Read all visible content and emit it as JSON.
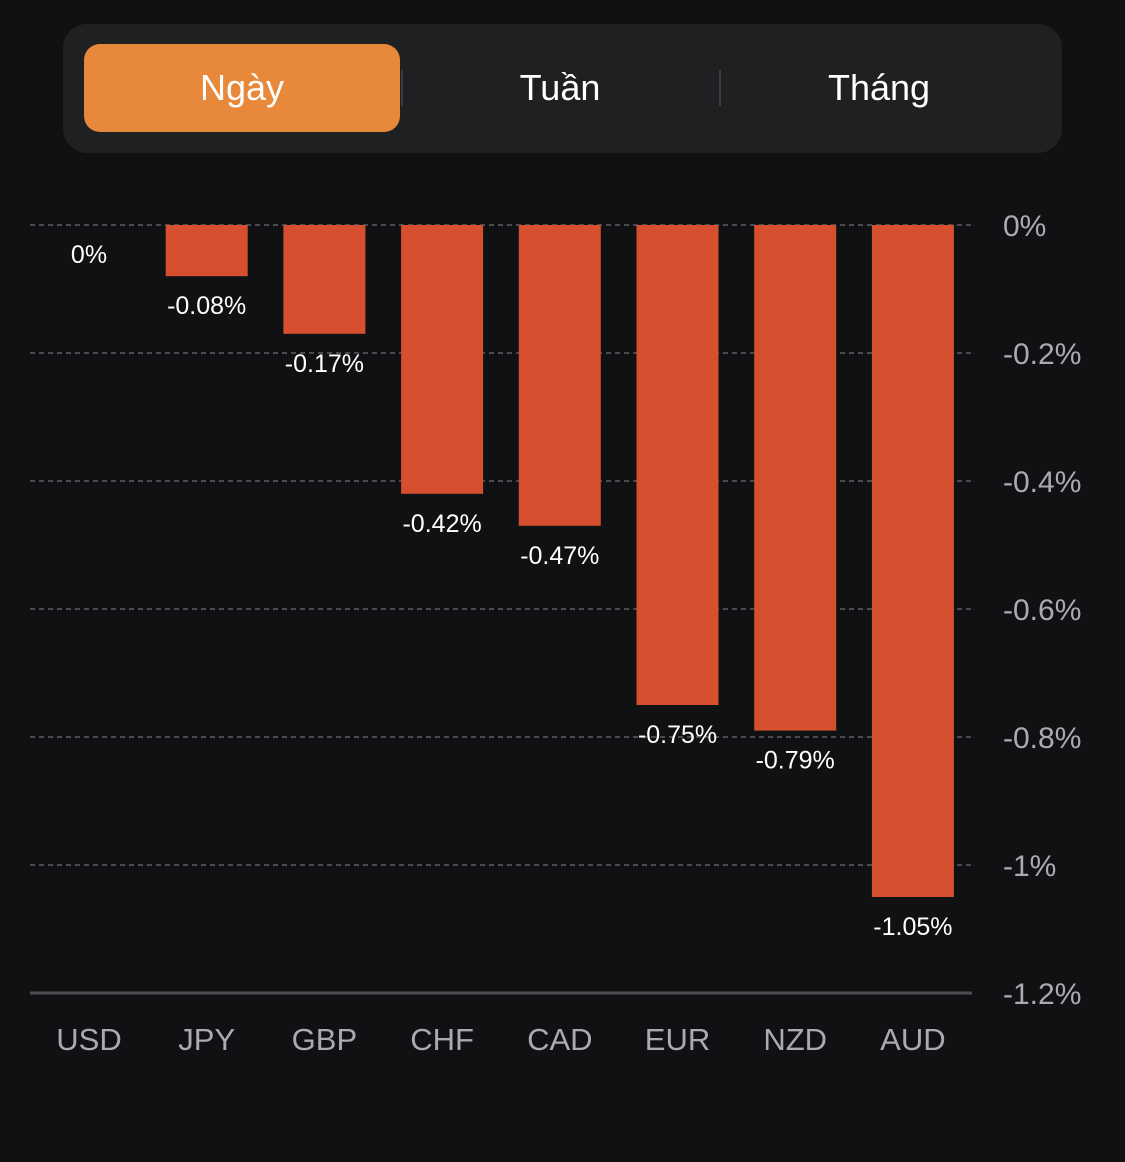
{
  "tabs": [
    {
      "label": "Ngày",
      "active": true
    },
    {
      "label": "Tuần",
      "active": false
    },
    {
      "label": "Tháng",
      "active": false
    }
  ],
  "colors": {
    "accent": "#e8883a",
    "bar": "#d6502f",
    "background": "#101112",
    "panel": "#1f2022",
    "grid": "#4a4b4e",
    "tick_text": "#a9abb0",
    "label_text": "#ffffff"
  },
  "chart_data": {
    "type": "bar",
    "categories": [
      "USD",
      "JPY",
      "GBP",
      "CHF",
      "CAD",
      "EUR",
      "NZD",
      "AUD"
    ],
    "values": [
      0,
      -0.08,
      -0.17,
      -0.42,
      -0.47,
      -0.75,
      -0.79,
      -1.05
    ],
    "value_labels": [
      "0%",
      "-0.08%",
      "-0.17%",
      "-0.42%",
      "-0.47%",
      "-0.75%",
      "-0.79%",
      "-1.05%"
    ],
    "ylim": [
      -1.2,
      0
    ],
    "yticks": [
      0,
      -0.2,
      -0.4,
      -0.6,
      -0.8,
      -1,
      -1.2
    ],
    "ytick_labels": [
      "0%",
      "-0.2%",
      "-0.4%",
      "-0.6%",
      "-0.8%",
      "-1%",
      "-1.2%"
    ],
    "axis_side": "right",
    "grid": true
  }
}
